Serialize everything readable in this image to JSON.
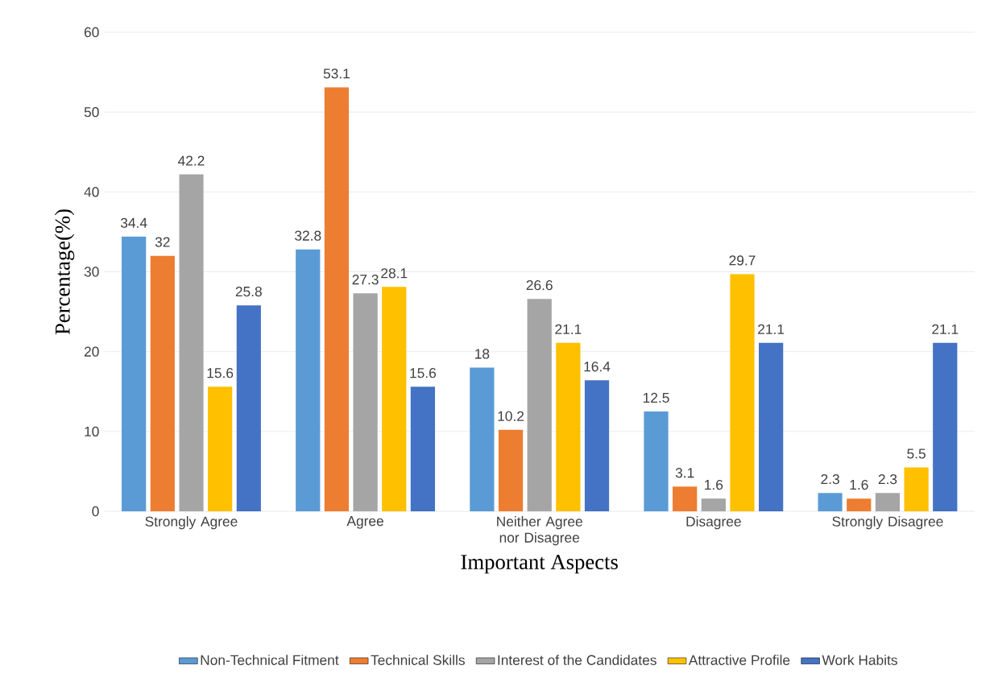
{
  "chart_data": {
    "type": "bar",
    "xlabel": "Important Aspects",
    "ylabel": "Percentage(%)",
    "categories": [
      "Strongly Agree",
      "Agree",
      "Neither Agree nor Disagree",
      "Disagree",
      "Strongly Disagree"
    ],
    "series": [
      {
        "name": "Non-Technical Fitment",
        "color": "#5b9bd5",
        "values": [
          34.4,
          32.8,
          18,
          12.5,
          2.3
        ]
      },
      {
        "name": "Technical Skills",
        "color": "#ed7d31",
        "values": [
          32,
          53.1,
          10.2,
          3.1,
          1.6
        ]
      },
      {
        "name": "Interest of the Candidates",
        "color": "#a5a5a5",
        "values": [
          42.2,
          27.3,
          26.6,
          1.6,
          2.3
        ]
      },
      {
        "name": "Attractive Profile",
        "color": "#ffc000",
        "values": [
          15.6,
          28.1,
          21.1,
          29.7,
          5.5
        ]
      },
      {
        "name": "Work Habits",
        "color": "#4472c4",
        "values": [
          25.8,
          15.6,
          16.4,
          21.1,
          21.1
        ]
      }
    ],
    "ylim": [
      0,
      60
    ],
    "yticks": [
      0,
      10,
      20,
      30,
      40,
      50,
      60
    ],
    "grid": "y",
    "legend": "bottom",
    "data_labels": true
  }
}
